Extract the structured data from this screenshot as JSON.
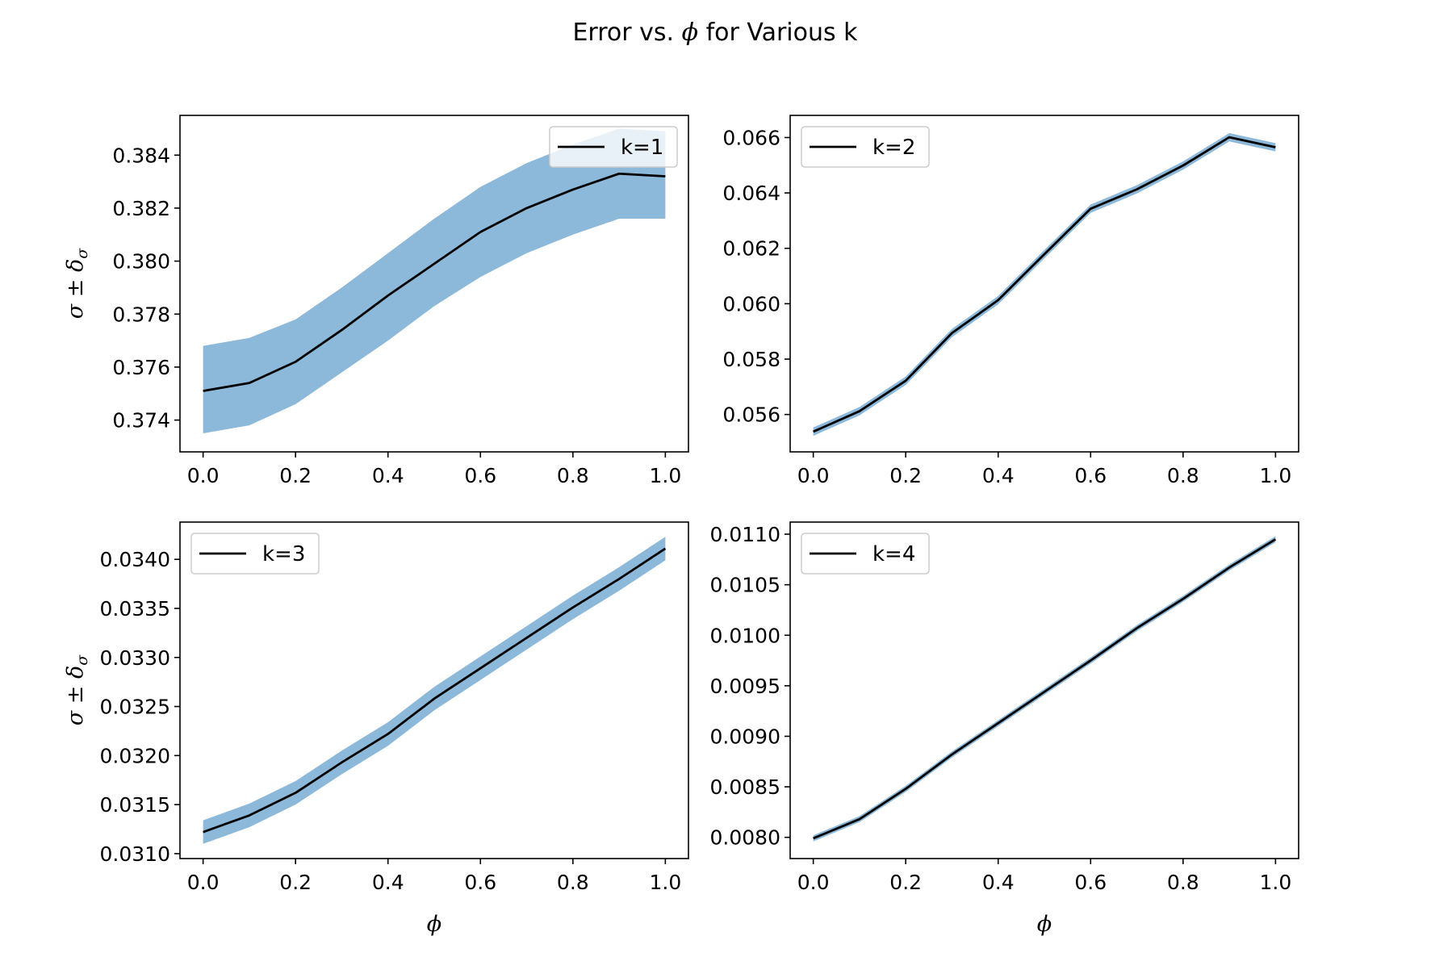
{
  "figure": {
    "title_prefix": "Error vs. ",
    "title_symbol": "ϕ",
    "title_suffix": " for Various k",
    "band_color": "#8cb8d9",
    "line_color": "#000000"
  },
  "chart_data": [
    {
      "type": "line",
      "panel": "top-left",
      "x": [
        0.0,
        0.1,
        0.2,
        0.3,
        0.4,
        0.5,
        0.6,
        0.7,
        0.8,
        0.9,
        1.0
      ],
      "series": [
        {
          "name": "k=1",
          "values": [
            0.3751,
            0.3754,
            0.3762,
            0.3774,
            0.3787,
            0.3799,
            0.3811,
            0.382,
            0.3827,
            0.3833,
            0.3832
          ],
          "lower": [
            0.3735,
            0.3738,
            0.3746,
            0.3758,
            0.377,
            0.3783,
            0.3794,
            0.3803,
            0.381,
            0.3816,
            0.3816
          ],
          "upper": [
            0.3768,
            0.3771,
            0.3778,
            0.379,
            0.3803,
            0.3816,
            0.3828,
            0.3837,
            0.3844,
            0.385,
            0.3849
          ]
        }
      ],
      "xlabel": "",
      "ylabel": "σ ± δ_σ",
      "xlim": [
        -0.05,
        1.05
      ],
      "ylim": [
        0.3728,
        0.3855
      ],
      "xticks": [
        "0.0",
        "0.2",
        "0.4",
        "0.6",
        "0.8",
        "1.0"
      ],
      "yticks": [
        "0.374",
        "0.376",
        "0.378",
        "0.380",
        "0.382",
        "0.384"
      ],
      "legend": "upper right",
      "grid": false
    },
    {
      "type": "line",
      "panel": "top-right",
      "x": [
        0.0,
        0.1,
        0.2,
        0.3,
        0.4,
        0.5,
        0.6,
        0.7,
        0.8,
        0.9,
        1.0
      ],
      "series": [
        {
          "name": "k=2",
          "values": [
            0.05538,
            0.05612,
            0.05722,
            0.05894,
            0.06013,
            0.06179,
            0.06343,
            0.06413,
            0.06499,
            0.06601,
            0.06565
          ],
          "lower": [
            0.05523,
            0.05597,
            0.05707,
            0.05879,
            0.05998,
            0.06164,
            0.06328,
            0.06398,
            0.06484,
            0.06586,
            0.0655
          ],
          "upper": [
            0.05553,
            0.05627,
            0.05737,
            0.05909,
            0.06028,
            0.06194,
            0.06358,
            0.06428,
            0.06514,
            0.06616,
            0.0658
          ]
        }
      ],
      "xlabel": "",
      "ylabel": "",
      "xlim": [
        -0.05,
        1.05
      ],
      "ylim": [
        0.05465,
        0.0668
      ],
      "xticks": [
        "0.0",
        "0.2",
        "0.4",
        "0.6",
        "0.8",
        "1.0"
      ],
      "yticks": [
        "0.056",
        "0.058",
        "0.060",
        "0.062",
        "0.064",
        "0.066"
      ],
      "legend": "upper left",
      "grid": false
    },
    {
      "type": "line",
      "panel": "bottom-left",
      "x": [
        0.0,
        0.1,
        0.2,
        0.3,
        0.4,
        0.5,
        0.6,
        0.7,
        0.8,
        0.9,
        1.0
      ],
      "series": [
        {
          "name": "k=3",
          "values": [
            0.03122,
            0.03139,
            0.03162,
            0.03193,
            0.03222,
            0.03258,
            0.03289,
            0.0332,
            0.03351,
            0.0338,
            0.03411
          ],
          "lower": [
            0.0311,
            0.03127,
            0.0315,
            0.03181,
            0.0321,
            0.03246,
            0.03277,
            0.03308,
            0.03339,
            0.03368,
            0.03399
          ],
          "upper": [
            0.03134,
            0.03151,
            0.03174,
            0.03205,
            0.03234,
            0.0327,
            0.03301,
            0.03332,
            0.03363,
            0.03392,
            0.03423
          ]
        }
      ],
      "xlabel": "ϕ",
      "ylabel": "σ ± δ_σ",
      "xlim": [
        -0.05,
        1.05
      ],
      "ylim": [
        0.03095,
        0.03438
      ],
      "xticks": [
        "0.0",
        "0.2",
        "0.4",
        "0.6",
        "0.8",
        "1.0"
      ],
      "yticks": [
        "0.0310",
        "0.0315",
        "0.0320",
        "0.0325",
        "0.0330",
        "0.0335",
        "0.0340"
      ],
      "legend": "upper left",
      "grid": false
    },
    {
      "type": "line",
      "panel": "bottom-right",
      "x": [
        0.0,
        0.1,
        0.2,
        0.3,
        0.4,
        0.5,
        0.6,
        0.7,
        0.8,
        0.9,
        1.0
      ],
      "series": [
        {
          "name": "k=4",
          "values": [
            0.00799,
            0.00818,
            0.00848,
            0.00882,
            0.00913,
            0.00944,
            0.00975,
            0.01007,
            0.01036,
            0.01067,
            0.01095
          ],
          "lower": [
            0.00796,
            0.00815,
            0.00845,
            0.00879,
            0.0091,
            0.00941,
            0.00972,
            0.01004,
            0.01033,
            0.01064,
            0.01092
          ],
          "upper": [
            0.00802,
            0.00821,
            0.00851,
            0.00885,
            0.00916,
            0.00947,
            0.00978,
            0.0101,
            0.01039,
            0.0107,
            0.01098
          ]
        }
      ],
      "xlabel": "ϕ",
      "ylabel": "",
      "xlim": [
        -0.05,
        1.05
      ],
      "ylim": [
        0.00779,
        0.01112
      ],
      "xticks": [
        "0.0",
        "0.2",
        "0.4",
        "0.6",
        "0.8",
        "1.0"
      ],
      "yticks": [
        "0.0080",
        "0.0085",
        "0.0090",
        "0.0095",
        "0.0100",
        "0.0105",
        "0.0110"
      ],
      "legend": "upper left",
      "grid": false
    }
  ]
}
